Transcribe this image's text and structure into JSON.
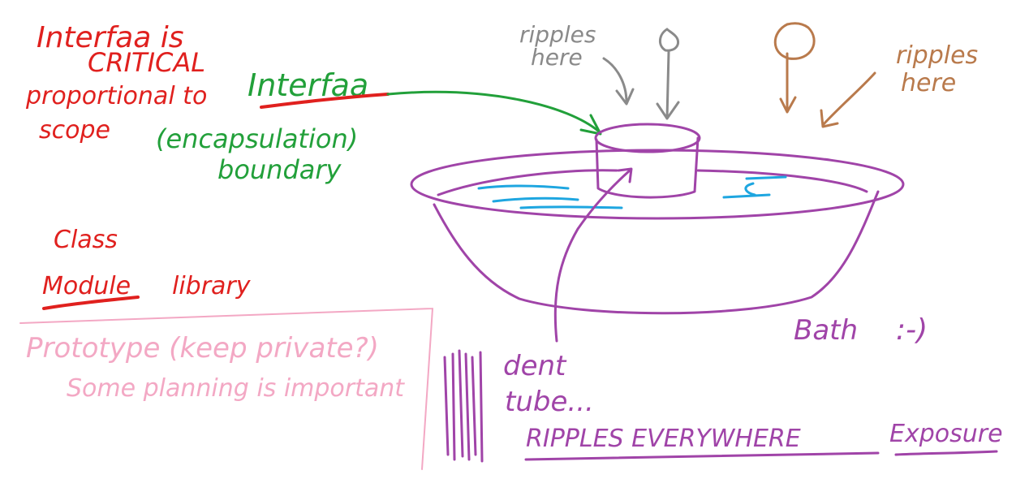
{
  "colors": {
    "red": "#e0201e",
    "green": "#22a03a",
    "pink": "#f3a8c4",
    "purple": "#a044a8",
    "blue": "#1ea6e0",
    "gray": "#8a8a8a",
    "brown": "#b97a4c"
  },
  "notes": {
    "interface_critical_1": "Interfaa is",
    "interface_critical_2": "CRITICAL",
    "proportional": "proportional to",
    "scope": "scope",
    "interface_green": "Interfaa",
    "encapsulation": "(encapsulation)",
    "boundary": "boundary",
    "class": "Class",
    "module": "Module",
    "library": "library",
    "prototype": "Prototype (keep private?)",
    "planning": "Some planning is important",
    "ripples_gray_1": "ripples",
    "ripples_gray_2": "here",
    "ripples_brown_1": "ripples",
    "ripples_brown_2": "here",
    "bath": "Bath",
    "smiley": ":-)",
    "dent": "dent",
    "tube": "tube...",
    "ripples_everywhere": "RIPPLES EVERYWHERE",
    "exposure": "Exposure"
  }
}
